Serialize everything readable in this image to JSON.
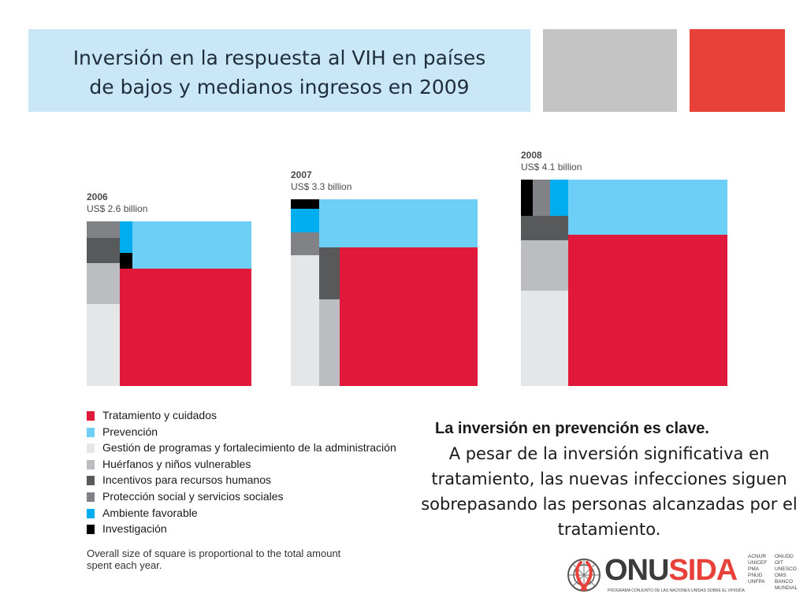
{
  "slide": {
    "title": "Inversión en la respuesta al VIH en países de bajos y medianos ingresos en 2009",
    "title_lines": [
      "Inversión en la respuesta al VIH en países",
      "de bajos y medianos ingresos en 2009"
    ],
    "message_title": "La inversión en prevención es clave.",
    "message_body": "A pesar de la inversión significativa en tratamiento, las nuevas infecciones siguen sobrepasando las personas alcanzadas por el tratamiento."
  },
  "chart_data": {
    "type": "treemap",
    "note": "Overall size of square is proportional to the total amount spent each year.",
    "categories": [
      {
        "name": "Tratamiento y cuidados",
        "color": "#e0193b"
      },
      {
        "name": "Prevención",
        "color": "#6dcff6"
      },
      {
        "name": "Gestión de programas y fortalecimiento de la administración",
        "color": "#e5e6e8"
      },
      {
        "name": "Huérfanos y niños vulnerables",
        "color": "#bcbdc0"
      },
      {
        "name": "Incentivos para recursos humanos",
        "color": "#58595b"
      },
      {
        "name": "Protección social y servicios sociales",
        "color": "#808285"
      },
      {
        "name": "Ambiente favorable",
        "color": "#00aeef"
      },
      {
        "name": "Investigación",
        "color": "#000000"
      }
    ],
    "series": [
      {
        "year": "2006",
        "total_label": "US$ 2.6 billion",
        "total_billion": 2.6
      },
      {
        "year": "2007",
        "total_label": "US$ 3.3 billion",
        "total_billion": 3.3
      },
      {
        "year": "2008",
        "total_label": "US$ 4.1 billion",
        "total_billion": 4.1
      }
    ]
  },
  "logo": {
    "wordmark_part1": "ONU",
    "wordmark_part2": "SIDA",
    "subtitle": "PROGRAMA CONJUNTO DE LAS NACIONES UNIDAS SOBRE EL VIH/SIDA",
    "cosponsors_col1": [
      "ACNUR",
      "UNICEF",
      "PMA",
      "PNUD",
      "UNFPA"
    ],
    "cosponsors_col2": [
      "ONUDD",
      "OIT",
      "UNESCO",
      "OMS",
      "BANCO MUNDIAL"
    ]
  }
}
